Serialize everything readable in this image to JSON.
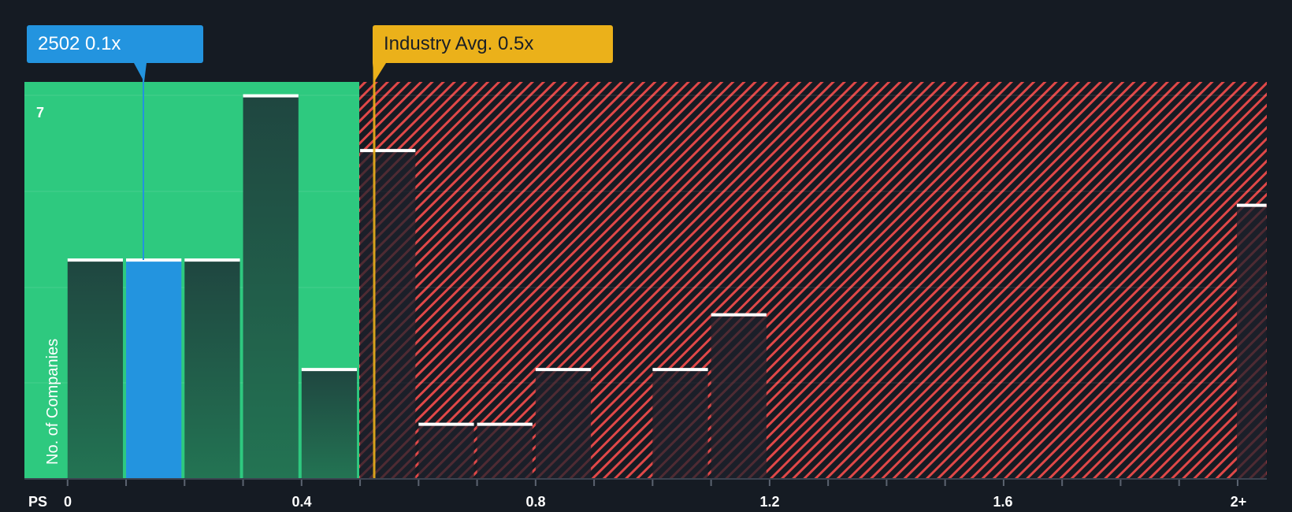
{
  "chart_data": {
    "type": "bar",
    "title": "",
    "xlabel": "PS",
    "ylabel": "No. of Companies",
    "x_tick_labels": [
      "0",
      "0.4",
      "0.8",
      "1.2",
      "1.6",
      "2+"
    ],
    "y_tick_labels": [
      "7"
    ],
    "ylim": [
      0,
      7
    ],
    "grid": true,
    "bins": [
      {
        "range": "0-0.1",
        "value": 4
      },
      {
        "range": "0.1-0.2",
        "value": 4,
        "highlight": true
      },
      {
        "range": "0.2-0.3",
        "value": 4
      },
      {
        "range": "0.3-0.4",
        "value": 7
      },
      {
        "range": "0.4-0.5",
        "value": 2
      },
      {
        "range": "0.5-0.6",
        "value": 6
      },
      {
        "range": "0.6-0.7",
        "value": 1
      },
      {
        "range": "0.7-0.8",
        "value": 1
      },
      {
        "range": "0.8-0.9",
        "value": 2
      },
      {
        "range": "0.9-1.0",
        "value": 0
      },
      {
        "range": "1.0-1.1",
        "value": 2
      },
      {
        "range": "1.1-1.2",
        "value": 3
      },
      {
        "range": "2+",
        "value": 5
      }
    ],
    "annotations": [
      {
        "label": "2502 0.1x",
        "x": 0.13,
        "color": "#2394df"
      },
      {
        "label": "Industry Avg. 0.5x",
        "x": 0.525,
        "color": "#ebb11a"
      }
    ],
    "zones": [
      {
        "name": "undervalued",
        "from": 0,
        "to": 0.5,
        "color": "#2ec97f"
      },
      {
        "name": "overvalued",
        "from": 0.5,
        "to": "2+",
        "color": "#e04848",
        "pattern": "hatched"
      }
    ]
  },
  "labels": {
    "company_callout": "2502 0.1x",
    "industry_callout": "Industry Avg. 0.5x",
    "y_axis_title": "No. of Companies",
    "y_max_tick": "7",
    "x_axis_prefix": "PS",
    "x_ticks": [
      "0",
      "0.4",
      "0.8",
      "1.2",
      "1.6",
      "2+"
    ]
  },
  "colors": {
    "background": "#151b23",
    "green_zone": "#2ec97f",
    "company": "#2394df",
    "industry": "#ebb11a",
    "hatch": "#e04848"
  }
}
